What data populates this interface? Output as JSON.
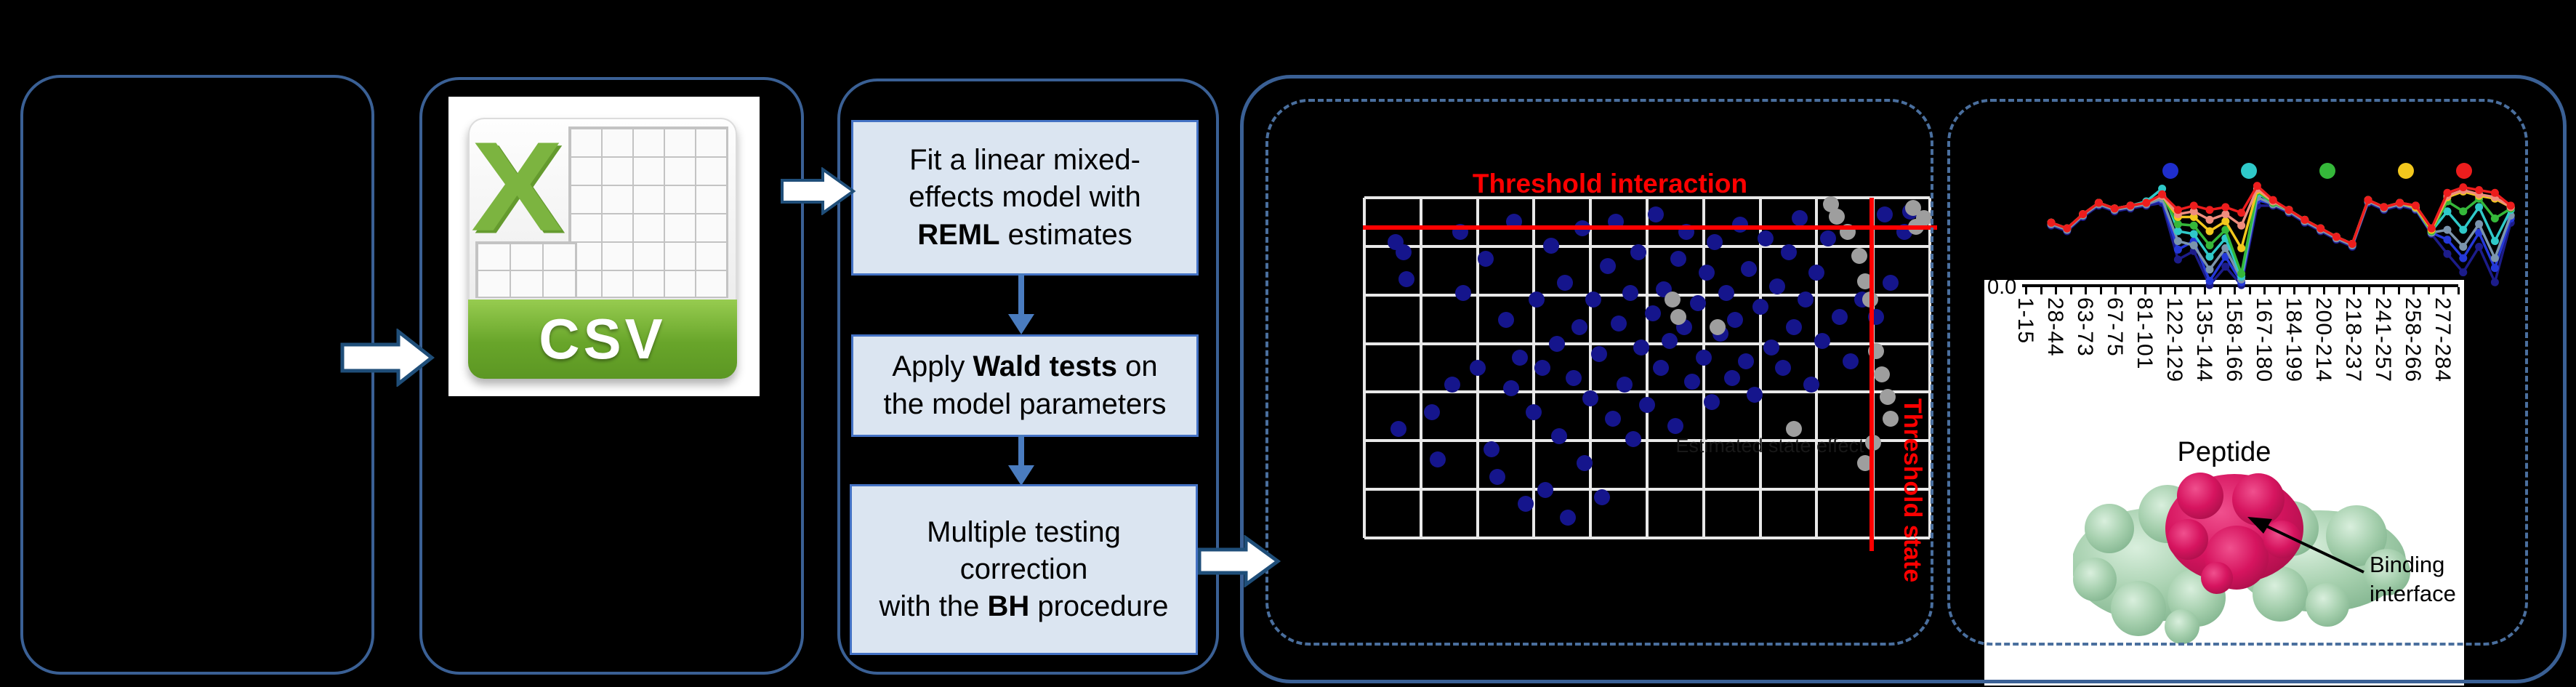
{
  "colors": {
    "panel_border": "#3a6095",
    "dashed_border": "#4a6f9e",
    "box_fill": "#dbe5f1",
    "box_border": "#4472c4",
    "flow_arrow_blue": "#4a7cbf",
    "threshold_red": "#ff0000",
    "scatter_blue": "#15158c",
    "scatter_gray": "#9e9e9e",
    "csv_green": "#7cb440",
    "protein_green": "#a5cfad",
    "protein_magenta": "#d61a64"
  },
  "csv_panel": {
    "x_glyph": "X",
    "file_type_label": "CSV"
  },
  "pipeline": {
    "steps": [
      {
        "lines": [
          [
            [
              "Fit a linear mixed-",
              0
            ]
          ],
          [
            [
              "effects model with",
              0
            ]
          ],
          [
            [
              "REML",
              1
            ],
            [
              " estimates",
              0
            ]
          ]
        ]
      },
      {
        "lines": [
          [
            [
              "Apply ",
              0
            ],
            [
              "Wald tests",
              1
            ],
            [
              " on",
              0
            ]
          ],
          [
            [
              "the model parameters",
              0
            ]
          ]
        ]
      },
      {
        "lines": [
          [
            [
              "Multiple testing",
              0
            ]
          ],
          [
            [
              "correction",
              0
            ]
          ],
          [
            [
              "with the ",
              0
            ],
            [
              "BH",
              1
            ],
            [
              " procedure",
              0
            ]
          ]
        ]
      }
    ]
  },
  "structure": {
    "binding_interface_label": "Binding interface"
  },
  "chart_data": [
    {
      "type": "scatter",
      "title": "Threshold interaction",
      "xlabel": "Estimated state effect",
      "threshold_state_label": "Threshold state",
      "grid": {
        "cols": 10,
        "rows": 7
      },
      "threshold_h_frac": 0.088,
      "threshold_v_frac": 0.897,
      "series": [
        {
          "name": "peptides",
          "color": "#15158c",
          "points": [
            [
              0.055,
              0.13
            ],
            [
              0.07,
              0.16
            ],
            [
              0.075,
              0.24
            ],
            [
              0.06,
              0.68
            ],
            [
              0.12,
              0.63
            ],
            [
              0.13,
              0.77
            ],
            [
              0.155,
              0.55
            ],
            [
              0.17,
              0.1
            ],
            [
              0.175,
              0.28
            ],
            [
              0.2,
              0.5
            ],
            [
              0.215,
              0.18
            ],
            [
              0.225,
              0.74
            ],
            [
              0.235,
              0.82
            ],
            [
              0.25,
              0.36
            ],
            [
              0.26,
              0.56
            ],
            [
              0.265,
              0.07
            ],
            [
              0.275,
              0.47
            ],
            [
              0.285,
              0.9
            ],
            [
              0.3,
              0.63
            ],
            [
              0.305,
              0.3
            ],
            [
              0.315,
              0.5
            ],
            [
              0.32,
              0.86
            ],
            [
              0.33,
              0.14
            ],
            [
              0.34,
              0.43
            ],
            [
              0.345,
              0.7
            ],
            [
              0.355,
              0.25
            ],
            [
              0.36,
              0.94
            ],
            [
              0.37,
              0.53
            ],
            [
              0.38,
              0.38
            ],
            [
              0.385,
              0.09
            ],
            [
              0.39,
              0.78
            ],
            [
              0.4,
              0.59
            ],
            [
              0.405,
              0.3
            ],
            [
              0.415,
              0.46
            ],
            [
              0.42,
              0.88
            ],
            [
              0.43,
              0.2
            ],
            [
              0.44,
              0.65
            ],
            [
              0.445,
              0.07
            ],
            [
              0.45,
              0.37
            ],
            [
              0.46,
              0.55
            ],
            [
              0.47,
              0.28
            ],
            [
              0.475,
              0.71
            ],
            [
              0.485,
              0.16
            ],
            [
              0.49,
              0.44
            ],
            [
              0.5,
              0.61
            ],
            [
              0.51,
              0.34
            ],
            [
              0.515,
              0.05
            ],
            [
              0.525,
              0.5
            ],
            [
              0.53,
              0.27
            ],
            [
              0.54,
              0.42
            ],
            [
              0.55,
              0.67
            ],
            [
              0.555,
              0.18
            ],
            [
              0.565,
              0.38
            ],
            [
              0.57,
              0.1
            ],
            [
              0.58,
              0.54
            ],
            [
              0.59,
              0.31
            ],
            [
              0.6,
              0.47
            ],
            [
              0.605,
              0.22
            ],
            [
              0.615,
              0.6
            ],
            [
              0.62,
              0.13
            ],
            [
              0.63,
              0.4
            ],
            [
              0.64,
              0.28
            ],
            [
              0.65,
              0.53
            ],
            [
              0.655,
              0.36
            ],
            [
              0.665,
              0.08
            ],
            [
              0.675,
              0.48
            ],
            [
              0.68,
              0.21
            ],
            [
              0.69,
              0.58
            ],
            [
              0.7,
              0.32
            ],
            [
              0.71,
              0.12
            ],
            [
              0.72,
              0.44
            ],
            [
              0.73,
              0.26
            ],
            [
              0.74,
              0.5
            ],
            [
              0.75,
              0.16
            ],
            [
              0.76,
              0.38
            ],
            [
              0.77,
              0.06
            ],
            [
              0.78,
              0.3
            ],
            [
              0.79,
              0.55
            ],
            [
              0.8,
              0.22
            ],
            [
              0.81,
              0.42
            ],
            [
              0.82,
              0.12
            ],
            [
              0.84,
              0.35
            ],
            [
              0.86,
              0.48
            ],
            [
              0.88,
              0.3
            ],
            [
              0.905,
              0.35
            ],
            [
              0.92,
              0.05
            ],
            [
              0.93,
              0.25
            ],
            [
              0.955,
              0.1
            ],
            [
              0.965,
              0.04
            ]
          ]
        },
        {
          "name": "peptides-nonsig",
          "color": "#9e9e9e",
          "points": [
            [
              0.545,
              0.3
            ],
            [
              0.555,
              0.35
            ],
            [
              0.625,
              0.38
            ],
            [
              0.825,
              0.02
            ],
            [
              0.835,
              0.055
            ],
            [
              0.855,
              0.1
            ],
            [
              0.875,
              0.17
            ],
            [
              0.885,
              0.245
            ],
            [
              0.895,
              0.3
            ],
            [
              0.905,
              0.45
            ],
            [
              0.915,
              0.52
            ],
            [
              0.925,
              0.585
            ],
            [
              0.93,
              0.65
            ],
            [
              0.9,
              0.72
            ],
            [
              0.885,
              0.78
            ],
            [
              0.76,
              0.68
            ],
            [
              0.97,
              0.03
            ],
            [
              0.975,
              0.085
            ],
            [
              0.99,
              0.06
            ]
          ]
        }
      ]
    },
    {
      "type": "line",
      "xlabel": "Peptide",
      "y_tick_label": "0.0",
      "categories": [
        "1-15",
        "",
        "28-44",
        "",
        "63-73",
        "",
        "67-75",
        "",
        "81-101",
        "",
        "122-129",
        "",
        "135-144",
        "",
        "158-166",
        "",
        "167-180",
        "",
        "184-199",
        "",
        "200-214",
        "",
        "218-237",
        "",
        "241-257",
        "",
        "258-266",
        "",
        "277-284",
        ""
      ],
      "legend_colors": [
        "#1f2ecc",
        "#2fc9c9",
        "#35b83a",
        "#f2c71d",
        "#ed1d1d"
      ],
      "series": [
        {
          "name": "t-navy",
          "color": "#1c1c8a",
          "values": [
            0.44,
            0.4,
            0.5,
            0.58,
            0.54,
            0.56,
            0.58,
            0.6,
            0.2,
            0.26,
            0.02,
            0.15,
            0.02,
            0.58,
            0.58,
            0.53,
            0.46,
            0.4,
            0.34,
            0.29,
            0.6,
            0.55,
            0.58,
            0.55,
            0.38,
            0.24,
            0.11,
            0.29,
            0.04,
            0.46
          ]
        },
        {
          "name": "t-blue",
          "color": "#2438d8",
          "values": [
            0.45,
            0.41,
            0.51,
            0.59,
            0.55,
            0.57,
            0.59,
            0.62,
            0.27,
            0.33,
            0.05,
            0.22,
            0.04,
            0.62,
            0.59,
            0.54,
            0.47,
            0.41,
            0.35,
            0.3,
            0.61,
            0.56,
            0.59,
            0.56,
            0.39,
            0.34,
            0.21,
            0.39,
            0.14,
            0.49
          ]
        },
        {
          "name": "t-slate",
          "color": "#7b95ad",
          "values": [
            0.45,
            0.41,
            0.51,
            0.59,
            0.55,
            0.57,
            0.59,
            0.63,
            0.33,
            0.3,
            0.13,
            0.28,
            0.06,
            0.64,
            0.59,
            0.54,
            0.47,
            0.41,
            0.35,
            0.3,
            0.61,
            0.56,
            0.59,
            0.56,
            0.39,
            0.41,
            0.29,
            0.45,
            0.21,
            0.51
          ]
        },
        {
          "name": "t-cyan",
          "color": "#2fc9c9",
          "values": [
            0.46,
            0.42,
            0.52,
            0.6,
            0.56,
            0.58,
            0.61,
            0.7,
            0.4,
            0.38,
            0.22,
            0.35,
            0.08,
            0.67,
            0.6,
            0.55,
            0.48,
            0.42,
            0.36,
            0.31,
            0.62,
            0.57,
            0.6,
            0.57,
            0.4,
            0.54,
            0.41,
            0.57,
            0.33,
            0.55
          ]
        },
        {
          "name": "t-green",
          "color": "#35b83a",
          "values": [
            0.46,
            0.42,
            0.52,
            0.6,
            0.56,
            0.58,
            0.6,
            0.65,
            0.45,
            0.44,
            0.3,
            0.41,
            0.1,
            0.68,
            0.6,
            0.55,
            0.48,
            0.42,
            0.36,
            0.31,
            0.62,
            0.57,
            0.6,
            0.57,
            0.4,
            0.61,
            0.54,
            0.63,
            0.49,
            0.56
          ]
        },
        {
          "name": "t-yellow",
          "color": "#f2c71d",
          "values": [
            0.46,
            0.42,
            0.52,
            0.6,
            0.56,
            0.58,
            0.6,
            0.65,
            0.5,
            0.5,
            0.4,
            0.47,
            0.28,
            0.69,
            0.61,
            0.55,
            0.48,
            0.42,
            0.36,
            0.31,
            0.62,
            0.57,
            0.6,
            0.57,
            0.41,
            0.64,
            0.68,
            0.65,
            0.63,
            0.57
          ]
        },
        {
          "name": "t-salmon",
          "color": "#ef8d7e",
          "values": [
            0.46,
            0.42,
            0.52,
            0.6,
            0.56,
            0.58,
            0.6,
            0.65,
            0.52,
            0.54,
            0.48,
            0.52,
            0.44,
            0.7,
            0.61,
            0.55,
            0.48,
            0.42,
            0.36,
            0.31,
            0.62,
            0.57,
            0.6,
            0.58,
            0.42,
            0.65,
            0.69,
            0.66,
            0.64,
            0.57
          ]
        },
        {
          "name": "t-red",
          "color": "#ed1d1d",
          "values": [
            0.46,
            0.42,
            0.52,
            0.6,
            0.56,
            0.58,
            0.6,
            0.66,
            0.55,
            0.58,
            0.55,
            0.57,
            0.53,
            0.72,
            0.62,
            0.55,
            0.48,
            0.42,
            0.36,
            0.31,
            0.62,
            0.57,
            0.6,
            0.58,
            0.42,
            0.67,
            0.71,
            0.69,
            0.67,
            0.58
          ]
        }
      ]
    }
  ]
}
